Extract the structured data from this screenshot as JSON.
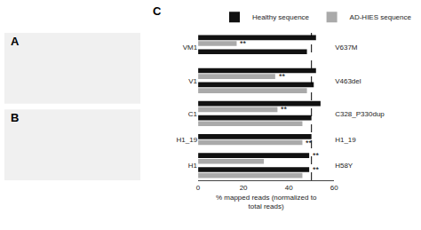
{
  "chart_data": {
    "type": "bar",
    "orientation": "horizontal",
    "title": "C",
    "panel_labels": [
      "A",
      "B"
    ],
    "categories": [
      "VM1",
      "V1",
      "C1",
      "H1_19",
      "H1"
    ],
    "right_labels": [
      "V637M",
      "V463del",
      "C328_P330dup",
      "H1_19",
      "H58Y"
    ],
    "x_label": "% mapped reads (normalized to\ntotal reads)",
    "xlim": [
      0,
      60
    ],
    "xticks": [
      0,
      20,
      40,
      60
    ],
    "vline": 50,
    "grid": false,
    "legend": "top right",
    "series": [
      {
        "name": "Healthy sequence",
        "color": "#111111",
        "values": [
          [
            52,
            48
          ],
          [
            52,
            51
          ],
          [
            54,
            50
          ],
          [
            50
          ],
          [
            49,
            49
          ]
        ],
        "labels": [
          [
            null,
            null
          ],
          [
            null,
            null
          ],
          [
            null,
            null
          ],
          [
            null
          ],
          [
            "**",
            "**"
          ]
        ]
      },
      {
        "name": "AD-HIES sequence",
        "color": "#aaaaaa",
        "values": [
          [
            17,
            null
          ],
          [
            34,
            48
          ],
          [
            35,
            46
          ],
          [
            46
          ],
          [
            29,
            46
          ]
        ],
        "labels": [
          [
            "**",
            null
          ],
          [
            "**",
            null
          ],
          [
            "**",
            null
          ],
          [
            "**"
          ],
          [
            null,
            null
          ]
        ]
      }
    ]
  }
}
